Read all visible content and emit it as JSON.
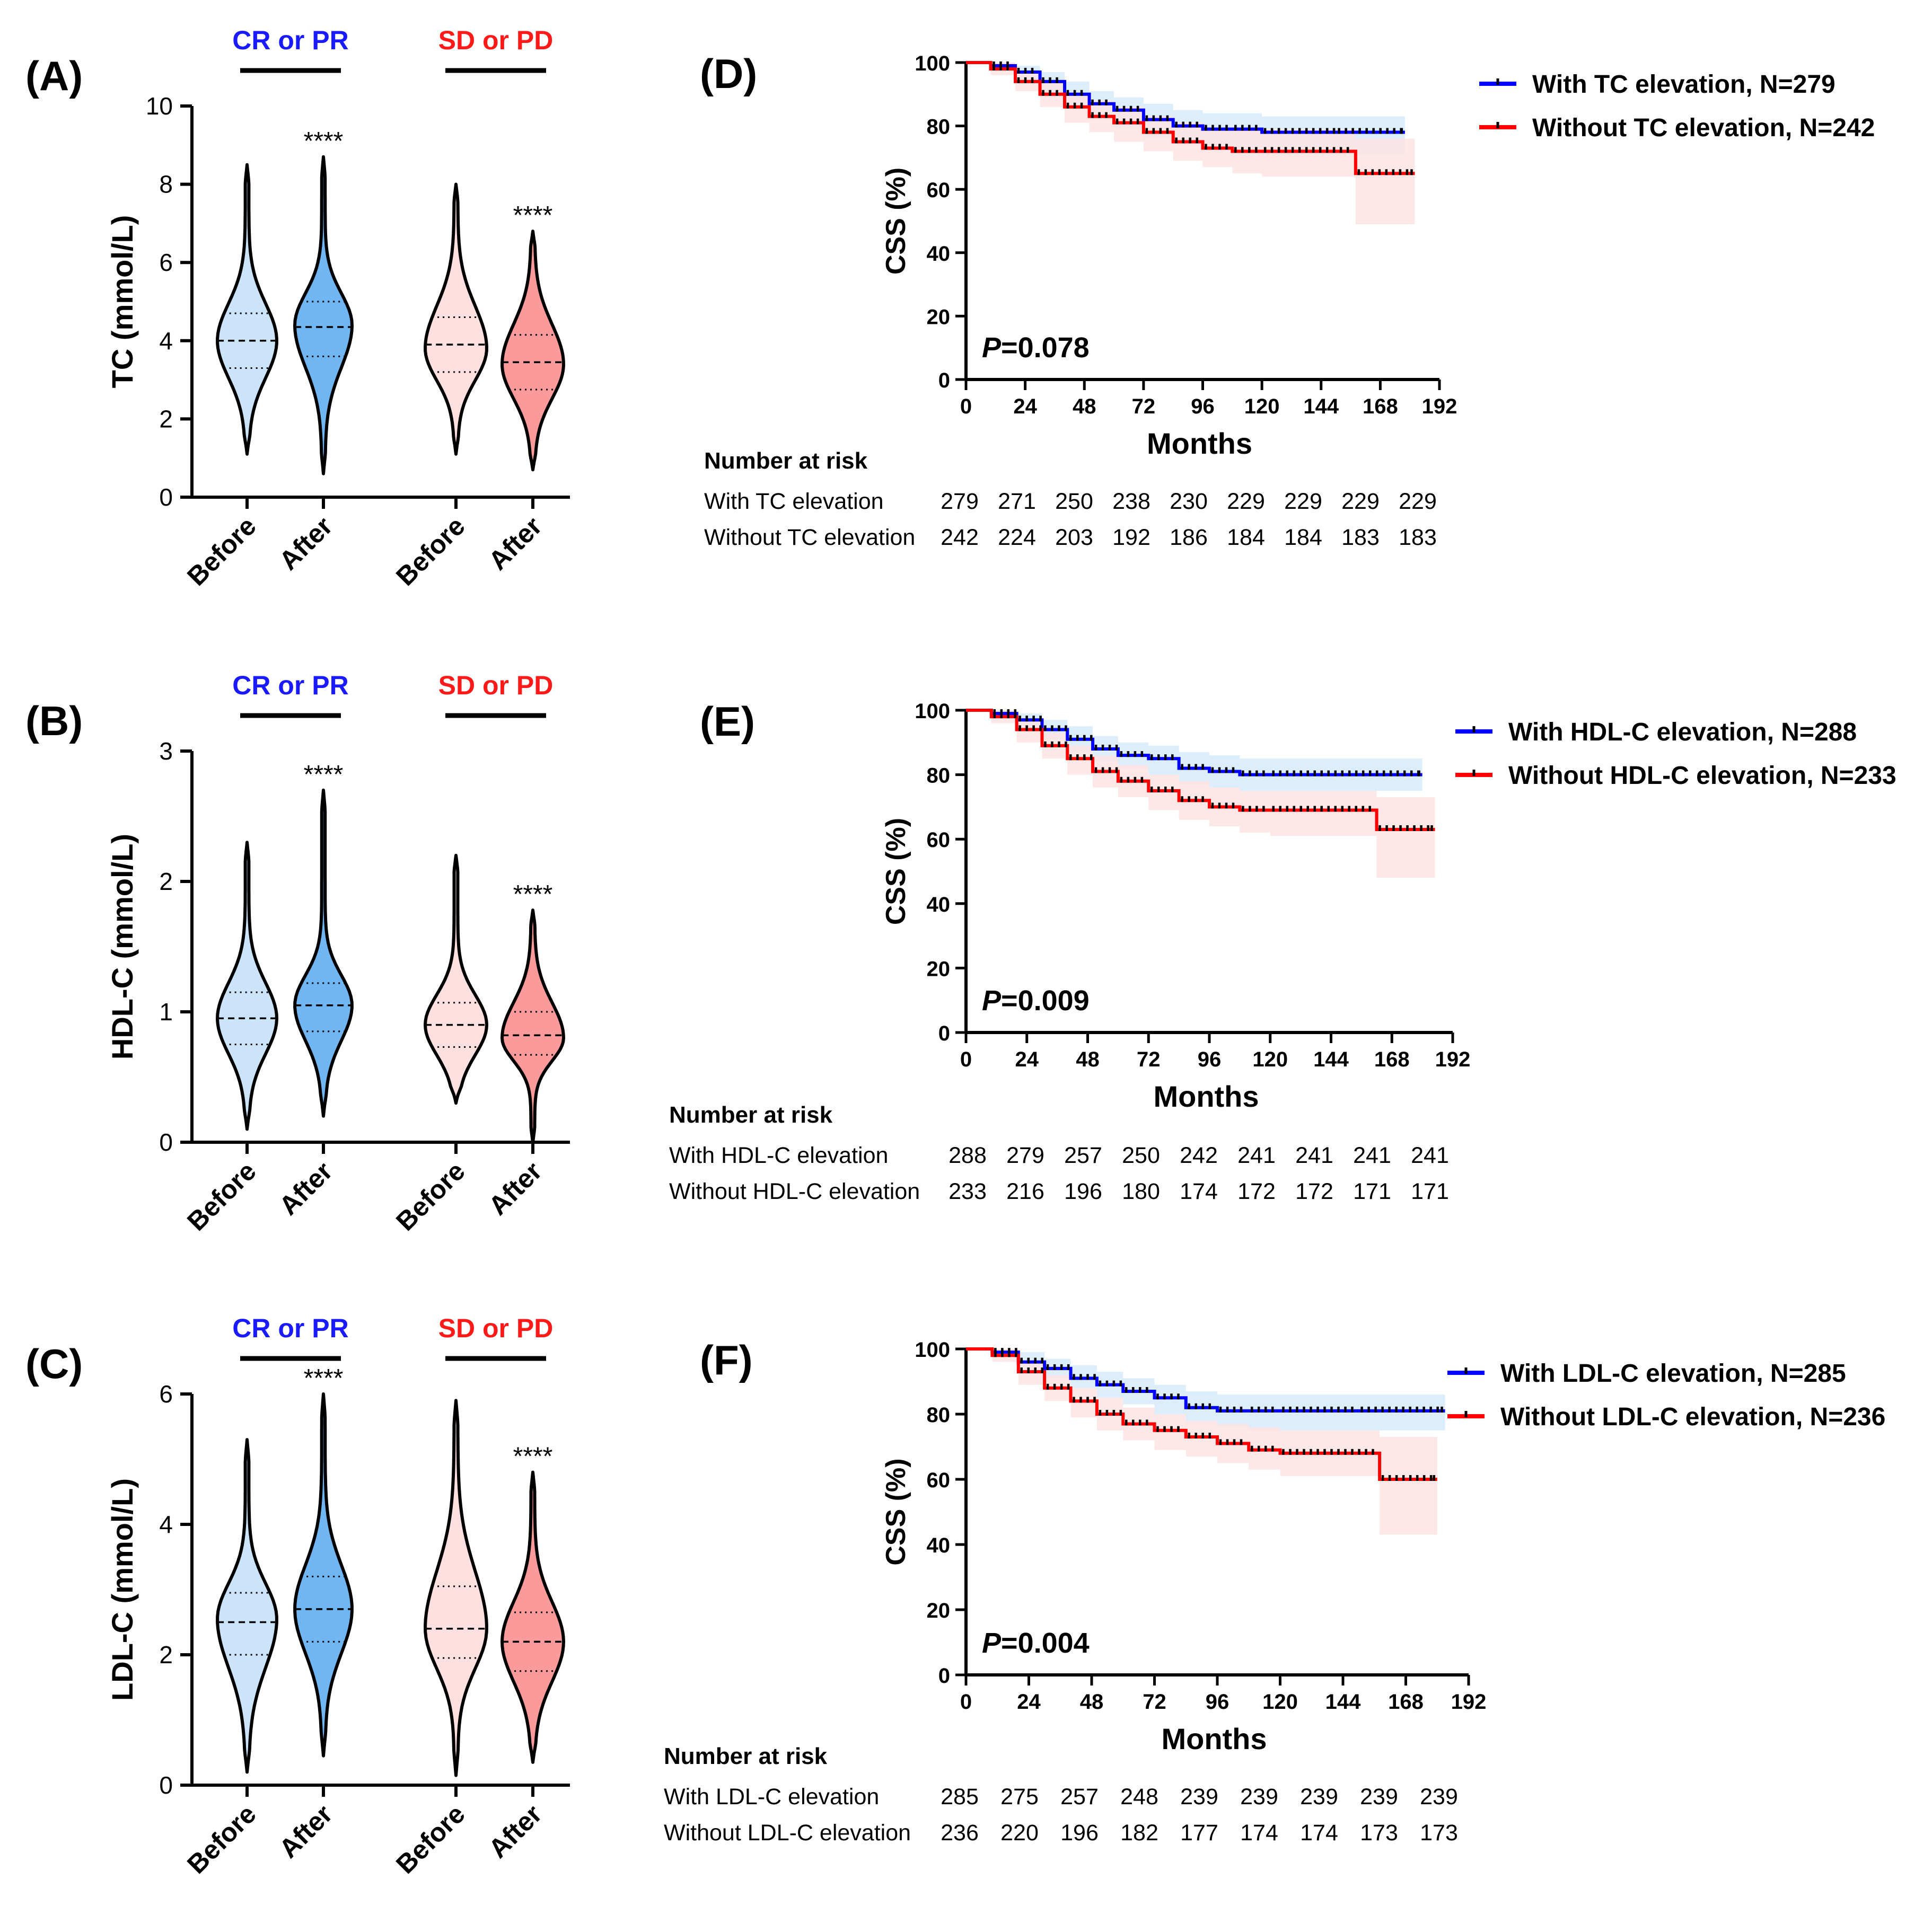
{
  "colors": {
    "cr_label": "#1a1aff",
    "sd_label": "#ff1a1a",
    "before_cr_fill": "#cce4fa",
    "after_cr_fill": "#6fb6f2",
    "before_sd_fill": "#ffe0e0",
    "after_sd_fill": "#fa9a9a",
    "km_with": "#0000ff",
    "km_without": "#ff0000",
    "ci_with": "#d6eafb",
    "ci_without": "#fde3e3"
  },
  "chart_data": [
    {
      "panel": "(A)",
      "type": "violin",
      "ylabel": "TC (mmol/L)",
      "ylim": [
        0,
        10
      ],
      "yticks": [
        0,
        2,
        4,
        6,
        8,
        10
      ],
      "groups": [
        "CR or PR",
        "SD or PD"
      ],
      "categories": [
        "Before",
        "After",
        "Before",
        "After"
      ],
      "significance": [
        "",
        "****",
        "",
        "****"
      ],
      "violins": [
        {
          "group": "CR or PR",
          "time": "Before",
          "min": 1.1,
          "max": 8.5,
          "q1": 3.3,
          "median": 4.0,
          "q3": 4.7,
          "mode": 4.0
        },
        {
          "group": "CR or PR",
          "time": "After",
          "min": 0.6,
          "max": 8.7,
          "q1": 3.6,
          "median": 4.35,
          "q3": 5.0,
          "mode": 4.4
        },
        {
          "group": "SD or PD",
          "time": "Before",
          "min": 1.1,
          "max": 8.0,
          "q1": 3.2,
          "median": 3.9,
          "q3": 4.6,
          "mode": 3.8
        },
        {
          "group": "SD or PD",
          "time": "After",
          "min": 0.7,
          "max": 6.8,
          "q1": 2.75,
          "median": 3.45,
          "q3": 4.15,
          "mode": 3.4
        }
      ]
    },
    {
      "panel": "(B)",
      "type": "violin",
      "ylabel": "HDL-C (mmol/L)",
      "ylim": [
        0,
        3
      ],
      "yticks": [
        0,
        1,
        2,
        3
      ],
      "groups": [
        "CR or PR",
        "SD or PD"
      ],
      "categories": [
        "Before",
        "After",
        "Before",
        "After"
      ],
      "significance": [
        "",
        "****",
        "",
        "****"
      ],
      "violins": [
        {
          "group": "CR or PR",
          "time": "Before",
          "min": 0.1,
          "max": 2.3,
          "q1": 0.75,
          "median": 0.95,
          "q3": 1.15,
          "mode": 0.95
        },
        {
          "group": "CR or PR",
          "time": "After",
          "min": 0.2,
          "max": 2.7,
          "q1": 0.85,
          "median": 1.05,
          "q3": 1.22,
          "mode": 1.05
        },
        {
          "group": "SD or PD",
          "time": "Before",
          "min": 0.3,
          "max": 2.2,
          "q1": 0.73,
          "median": 0.9,
          "q3": 1.07,
          "mode": 0.9
        },
        {
          "group": "SD or PD",
          "time": "After",
          "min": 0.0,
          "max": 1.78,
          "q1": 0.67,
          "median": 0.82,
          "q3": 1.0,
          "mode": 0.8
        }
      ]
    },
    {
      "panel": "(C)",
      "type": "violin",
      "ylabel": "LDL-C (mmol/L)",
      "ylim": [
        0,
        6
      ],
      "yticks": [
        0,
        2,
        4,
        6
      ],
      "groups": [
        "CR or PR",
        "SD or PD"
      ],
      "categories": [
        "Before",
        "After",
        "Before",
        "After"
      ],
      "significance": [
        "",
        "****",
        "",
        "****"
      ],
      "violins": [
        {
          "group": "CR or PR",
          "time": "Before",
          "min": 0.2,
          "max": 5.3,
          "q1": 2.0,
          "median": 2.5,
          "q3": 2.95,
          "mode": 2.55
        },
        {
          "group": "CR or PR",
          "time": "After",
          "min": 0.45,
          "max": 6.0,
          "q1": 2.2,
          "median": 2.7,
          "q3": 3.2,
          "mode": 2.7
        },
        {
          "group": "SD or PD",
          "time": "Before",
          "min": 0.15,
          "max": 5.9,
          "q1": 1.95,
          "median": 2.4,
          "q3": 3.05,
          "mode": 2.4
        },
        {
          "group": "SD or PD",
          "time": "After",
          "min": 0.35,
          "max": 4.8,
          "q1": 1.75,
          "median": 2.2,
          "q3": 2.65,
          "mode": 2.2
        }
      ]
    },
    {
      "panel": "(D)",
      "type": "line",
      "ylabel": "CSS (%)",
      "xlabel": "Months",
      "ylim": [
        0,
        100
      ],
      "xlim": [
        0,
        192
      ],
      "yticks": [
        0,
        20,
        40,
        60,
        80,
        100
      ],
      "xticks": [
        0,
        24,
        48,
        72,
        96,
        120,
        144,
        168,
        192
      ],
      "p_label": "P",
      "p_value": "=0.078",
      "series": [
        {
          "name": "With TC elevation, N=279",
          "color": "blue",
          "x": [
            0,
            10,
            20,
            30,
            40,
            50,
            60,
            72,
            84,
            96,
            108,
            120,
            150,
            178
          ],
          "y": [
            100,
            99,
            97,
            94,
            90,
            87,
            85,
            82,
            80,
            79,
            79,
            78,
            78,
            78
          ],
          "ci_lower": [
            100,
            98,
            94,
            90,
            86,
            82,
            79,
            76,
            74,
            73,
            72,
            71,
            71,
            71
          ],
          "ci_upper": [
            100,
            100,
            99,
            97,
            94,
            91,
            89,
            87,
            85,
            84,
            84,
            83,
            83,
            83
          ]
        },
        {
          "name": "Without TC elevation, N=242",
          "color": "red",
          "x": [
            0,
            10,
            20,
            30,
            40,
            50,
            60,
            72,
            84,
            96,
            108,
            120,
            158,
            158,
            182
          ],
          "y": [
            100,
            98,
            94,
            90,
            86,
            83,
            81,
            78,
            75,
            73,
            72,
            72,
            72,
            65,
            65
          ],
          "ci_lower": [
            100,
            96,
            91,
            86,
            81,
            78,
            75,
            72,
            69,
            67,
            65,
            64,
            64,
            49,
            49
          ],
          "ci_upper": [
            100,
            100,
            97,
            94,
            90,
            88,
            86,
            83,
            81,
            79,
            79,
            79,
            79,
            76,
            76
          ]
        }
      ],
      "risk_table": {
        "title": "Number at risk",
        "rows": [
          {
            "label": "With TC elevation",
            "values": [
              279,
              271,
              250,
              238,
              230,
              229,
              229,
              229,
              229
            ]
          },
          {
            "label": "Without TC elevation",
            "values": [
              242,
              224,
              203,
              192,
              186,
              184,
              184,
              183,
              183
            ]
          }
        ]
      }
    },
    {
      "panel": "(E)",
      "type": "line",
      "ylabel": "CSS (%)",
      "xlabel": "Months",
      "ylim": [
        0,
        100
      ],
      "xlim": [
        0,
        192
      ],
      "yticks": [
        0,
        20,
        40,
        60,
        80,
        100
      ],
      "xticks": [
        0,
        24,
        48,
        72,
        96,
        120,
        144,
        168,
        192
      ],
      "p_label": "P",
      "p_value": "=0.009",
      "series": [
        {
          "name": "With HDL-C elevation, N=288",
          "color": "blue",
          "x": [
            0,
            10,
            20,
            30,
            40,
            50,
            60,
            72,
            84,
            96,
            108,
            120,
            150,
            180
          ],
          "y": [
            100,
            99,
            97,
            94,
            91,
            88,
            86,
            85,
            82,
            81,
            80,
            80,
            80,
            80
          ],
          "ci_lower": [
            100,
            98,
            95,
            91,
            87,
            84,
            82,
            80,
            77,
            76,
            75,
            75,
            75,
            75
          ],
          "ci_upper": [
            100,
            100,
            99,
            97,
            95,
            92,
            90,
            89,
            87,
            86,
            85,
            85,
            85,
            85
          ]
        },
        {
          "name": "Without HDL-C elevation, N=233",
          "color": "red",
          "x": [
            0,
            10,
            20,
            30,
            40,
            50,
            60,
            72,
            84,
            96,
            108,
            120,
            162,
            162,
            185
          ],
          "y": [
            100,
            98,
            94,
            89,
            85,
            81,
            78,
            75,
            72,
            70,
            69,
            69,
            69,
            63,
            63
          ],
          "ci_lower": [
            100,
            96,
            90,
            85,
            80,
            76,
            73,
            69,
            66,
            64,
            62,
            61,
            61,
            48,
            48
          ],
          "ci_upper": [
            100,
            100,
            97,
            93,
            89,
            86,
            83,
            80,
            78,
            76,
            75,
            75,
            75,
            73,
            73
          ]
        }
      ],
      "risk_table": {
        "title": "Number at risk",
        "rows": [
          {
            "label": "With HDL-C elevation",
            "values": [
              288,
              279,
              257,
              250,
              242,
              241,
              241,
              241,
              241
            ]
          },
          {
            "label": "Without HDL-C elevation",
            "values": [
              233,
              216,
              196,
              180,
              174,
              172,
              172,
              171,
              171
            ]
          }
        ]
      }
    },
    {
      "panel": "(F)",
      "type": "line",
      "ylabel": "CSS (%)",
      "xlabel": "Months",
      "ylim": [
        0,
        100
      ],
      "xlim": [
        0,
        192
      ],
      "yticks": [
        0,
        20,
        40,
        60,
        80,
        100
      ],
      "xticks": [
        0,
        24,
        48,
        72,
        96,
        120,
        144,
        168,
        192
      ],
      "p_label": "P",
      "p_value": "=0.004",
      "series": [
        {
          "name": "With LDL-C elevation, N=285",
          "color": "blue",
          "x": [
            0,
            10,
            20,
            30,
            40,
            50,
            60,
            72,
            84,
            96,
            108,
            120,
            150,
            183
          ],
          "y": [
            100,
            99,
            96,
            94,
            91,
            89,
            87,
            85,
            82,
            81,
            81,
            81,
            81,
            81
          ],
          "ci_lower": [
            100,
            98,
            94,
            91,
            88,
            85,
            83,
            80,
            77,
            76,
            75,
            75,
            75,
            75
          ],
          "ci_upper": [
            100,
            100,
            99,
            97,
            95,
            93,
            91,
            89,
            87,
            86,
            86,
            86,
            86,
            86
          ]
        },
        {
          "name": "Without LDL-C elevation, N=236",
          "color": "red",
          "x": [
            0,
            10,
            20,
            30,
            40,
            50,
            60,
            72,
            84,
            96,
            108,
            120,
            158,
            158,
            180
          ],
          "y": [
            100,
            98,
            93,
            88,
            84,
            80,
            77,
            75,
            73,
            71,
            69,
            68,
            68,
            60,
            60
          ],
          "ci_lower": [
            100,
            96,
            89,
            84,
            79,
            75,
            72,
            69,
            67,
            65,
            63,
            61,
            61,
            43,
            43
          ],
          "ci_upper": [
            100,
            100,
            96,
            92,
            88,
            85,
            82,
            80,
            78,
            77,
            76,
            75,
            75,
            73,
            73
          ]
        }
      ],
      "risk_table": {
        "title": "Number at risk",
        "rows": [
          {
            "label": "With LDL-C elevation",
            "values": [
              285,
              275,
              257,
              248,
              239,
              239,
              239,
              239,
              239
            ]
          },
          {
            "label": "Without LDL-C elevation",
            "values": [
              236,
              220,
              196,
              182,
              177,
              174,
              174,
              173,
              173
            ]
          }
        ]
      }
    }
  ]
}
